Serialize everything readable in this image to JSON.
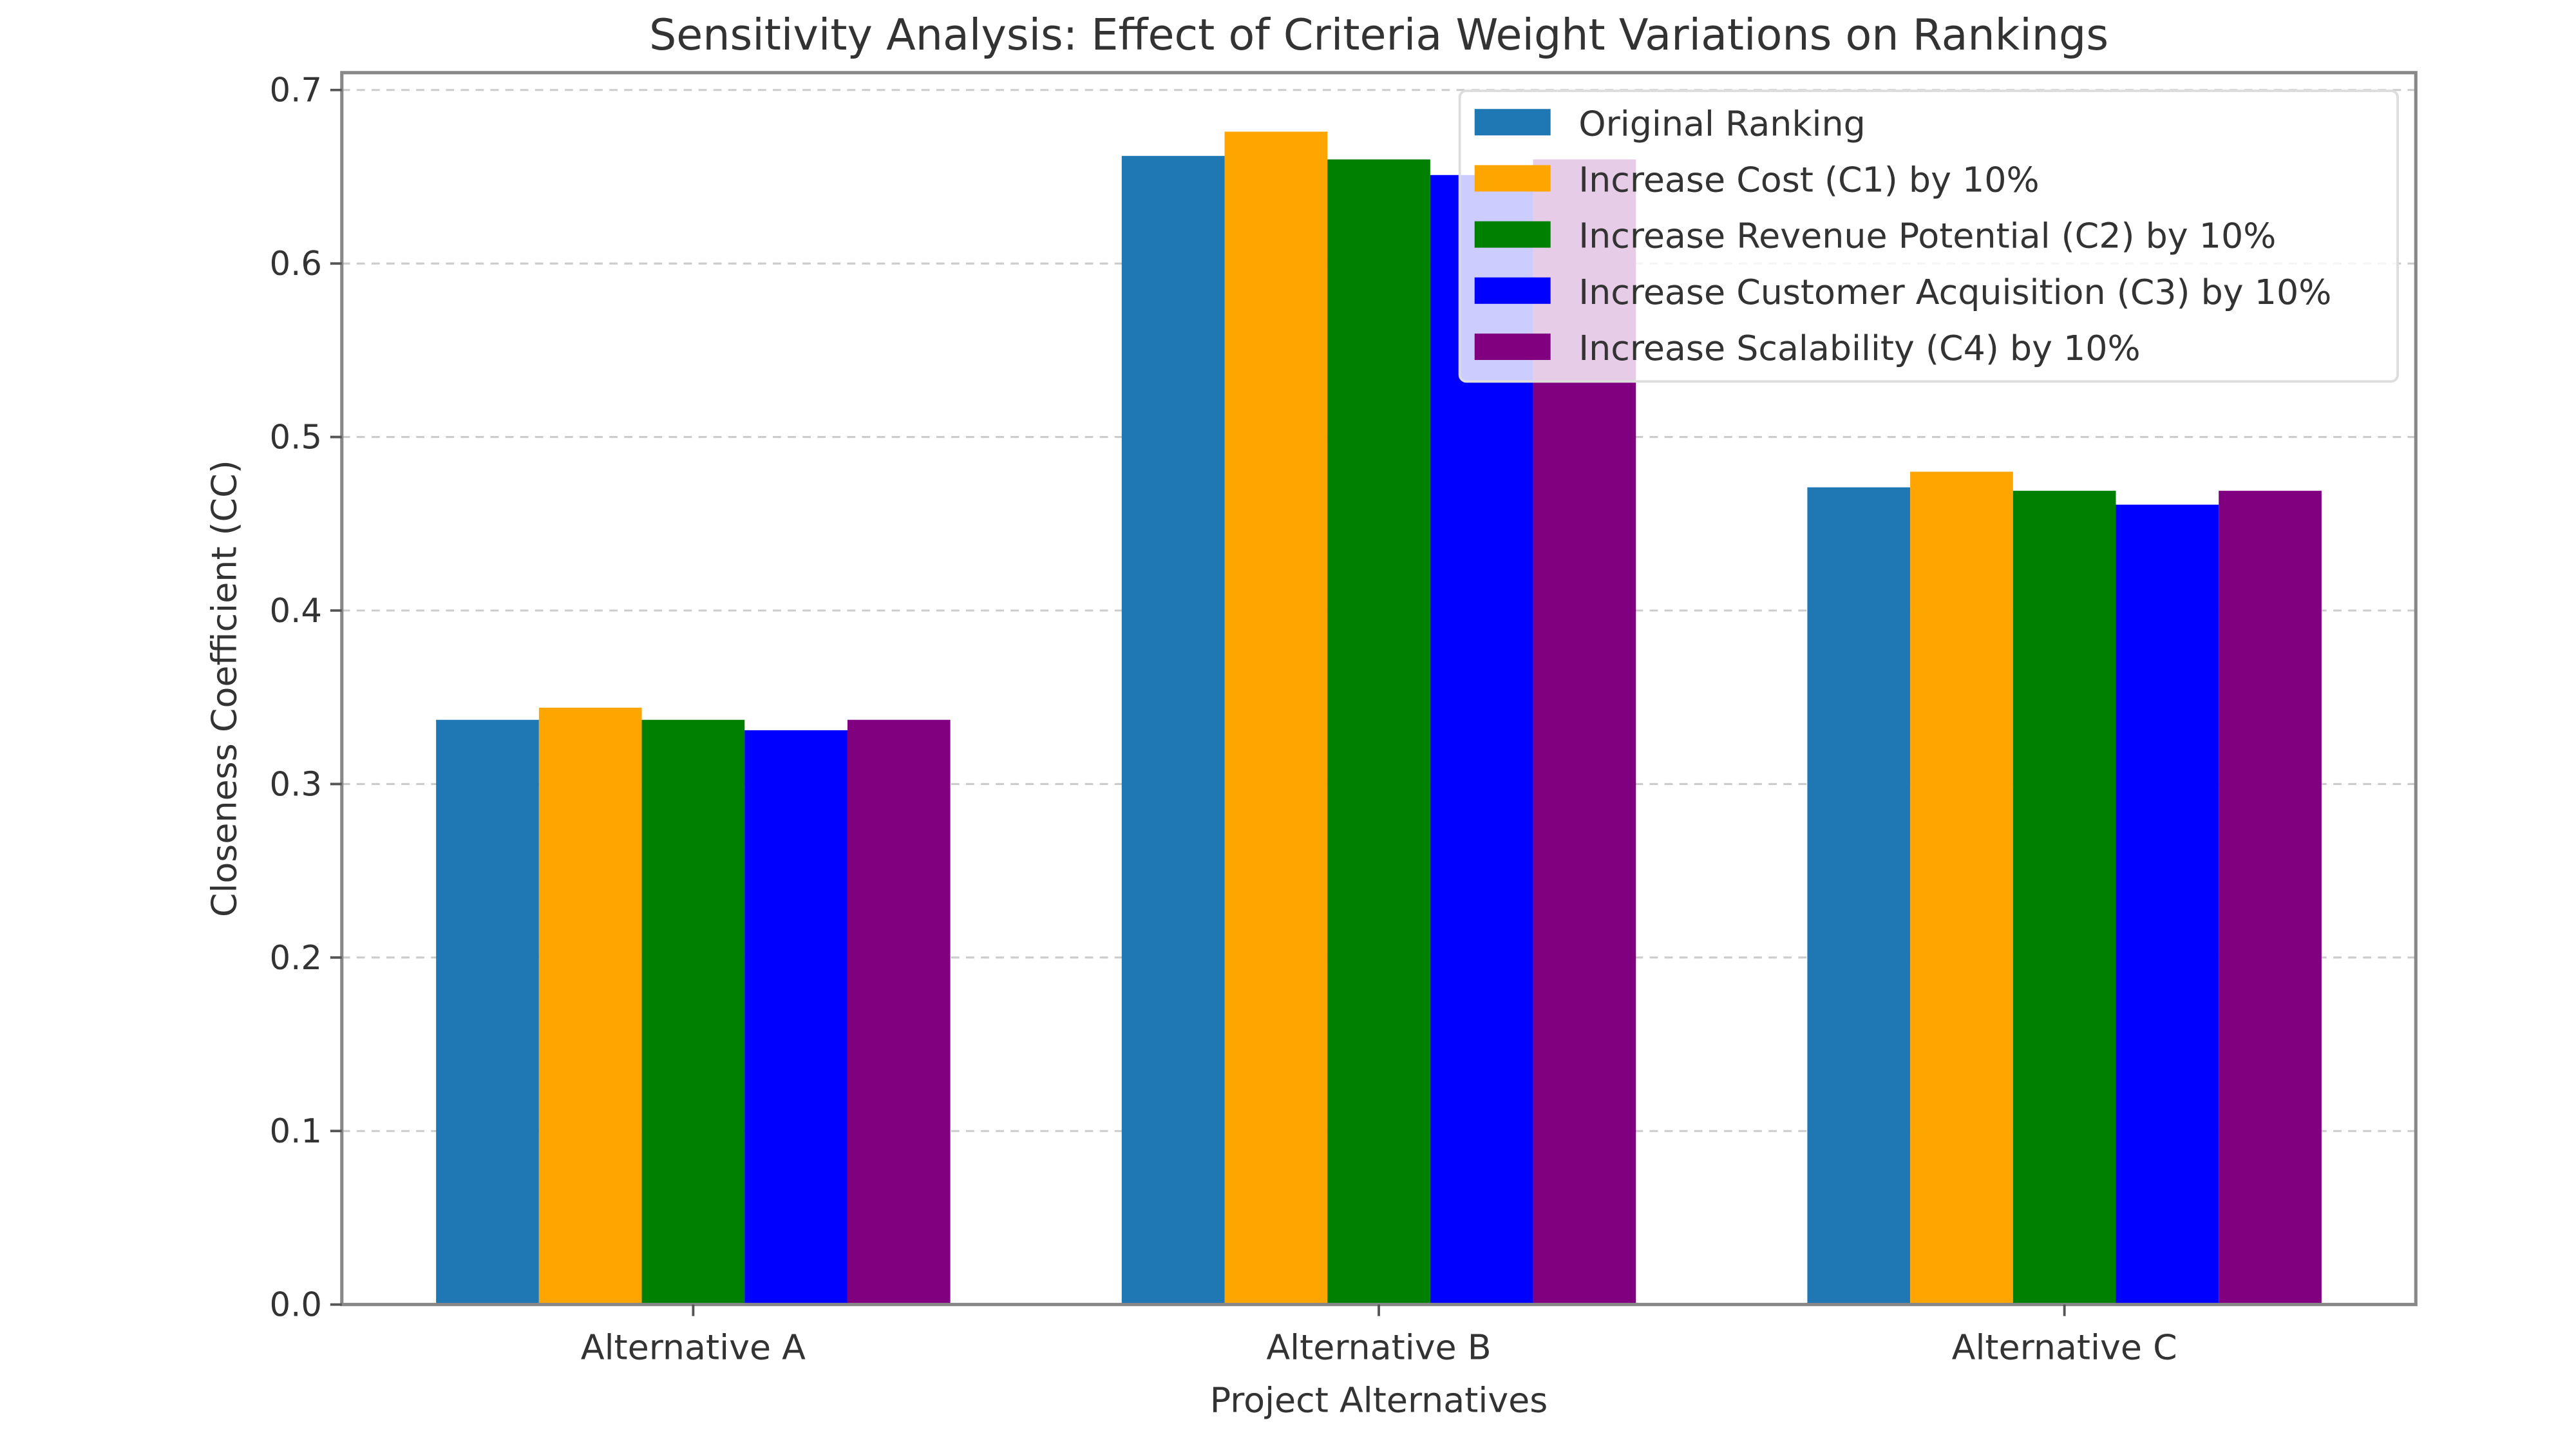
{
  "chart_data": {
    "type": "bar",
    "title": "Sensitivity Analysis: Effect of Criteria Weight Variations on Rankings",
    "xlabel": "Project Alternatives",
    "ylabel": "Closeness Coefficient (CC)",
    "categories": [
      "Alternative A",
      "Alternative B",
      "Alternative C"
    ],
    "ylim": [
      0,
      0.71
    ],
    "yticks": [
      "0.0",
      "0.1",
      "0.2",
      "0.3",
      "0.4",
      "0.5",
      "0.6",
      "0.7"
    ],
    "grid": "y, dashed",
    "legend_position": "top-right",
    "series": [
      {
        "name": "Original Ranking",
        "color": "#1f77b4",
        "values": [
          0.337,
          0.662,
          0.471
        ]
      },
      {
        "name": "Increase Cost (C1) by 10%",
        "color": "#ffa500",
        "values": [
          0.344,
          0.676,
          0.48
        ]
      },
      {
        "name": "Increase Revenue Potential (C2) by 10%",
        "color": "#008000",
        "values": [
          0.337,
          0.66,
          0.469
        ]
      },
      {
        "name": "Increase Customer Acquisition (C3) by 10%",
        "color": "#0000ff",
        "values": [
          0.331,
          0.651,
          0.461
        ]
      },
      {
        "name": "Increase Scalability (C4) by 10%",
        "color": "#800080",
        "values": [
          0.337,
          0.66,
          0.469
        ]
      }
    ]
  }
}
